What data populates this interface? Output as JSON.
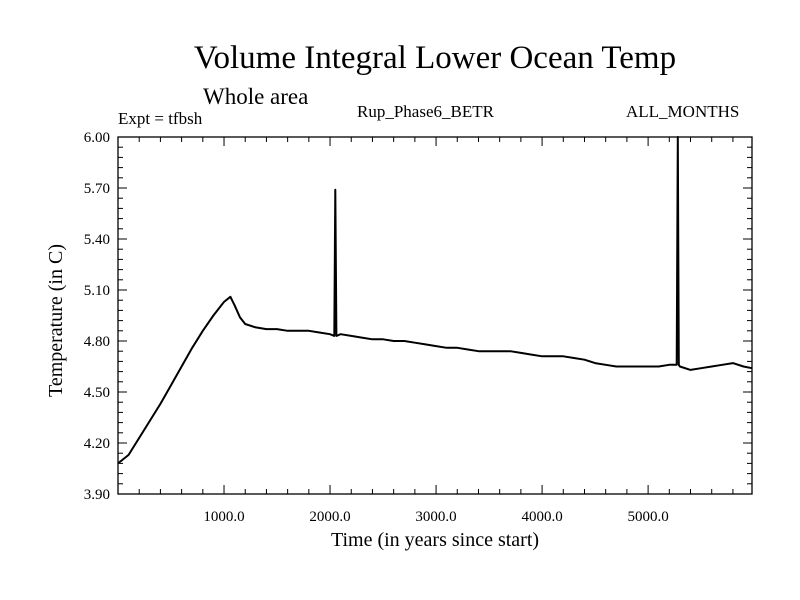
{
  "chart_data": {
    "type": "line",
    "title": "Volume Integral Lower Ocean Temp",
    "subtitle": "Whole area",
    "annotations": {
      "experiment": "Expt = tfbsh",
      "run": "Rup_Phase6_BETR",
      "period": "ALL_MONTHS"
    },
    "xlabel": "Time (in years since start)",
    "ylabel": "Temperature (in C)",
    "xlim": [
      0,
      5980
    ],
    "ylim": [
      3.9,
      6.0
    ],
    "x_ticks": [
      1000,
      2000,
      3000,
      4000,
      5000
    ],
    "x_tick_labels": [
      "1000.0",
      "2000.0",
      "3000.0",
      "4000.0",
      "5000.0"
    ],
    "y_ticks": [
      3.9,
      4.2,
      4.5,
      4.8,
      5.1,
      5.4,
      5.7,
      6.0
    ],
    "y_tick_labels": [
      "3.90",
      "4.20",
      "4.50",
      "4.80",
      "5.10",
      "5.40",
      "5.70",
      "6.00"
    ],
    "grid": false,
    "series": [
      {
        "name": "Volume Integral Lower Ocean Temp",
        "x": [
          0,
          100,
          200,
          300,
          400,
          500,
          600,
          700,
          800,
          900,
          1000,
          1060,
          1100,
          1150,
          1200,
          1300,
          1400,
          1500,
          1600,
          1700,
          1800,
          1900,
          2000,
          2040,
          2050,
          2060,
          2100,
          2200,
          2300,
          2400,
          2500,
          2600,
          2700,
          2800,
          2900,
          3000,
          3100,
          3200,
          3300,
          3400,
          3500,
          3600,
          3700,
          3800,
          3900,
          4000,
          4100,
          4200,
          4300,
          4400,
          4500,
          4600,
          4700,
          4800,
          4900,
          5000,
          5100,
          5200,
          5250,
          5270,
          5280,
          5290,
          5300,
          5400,
          5500,
          5600,
          5700,
          5800,
          5900,
          5980
        ],
        "y": [
          4.08,
          4.13,
          4.23,
          4.33,
          4.43,
          4.54,
          4.65,
          4.76,
          4.86,
          4.95,
          5.03,
          5.06,
          5.01,
          4.94,
          4.9,
          4.88,
          4.87,
          4.87,
          4.86,
          4.86,
          4.86,
          4.85,
          4.84,
          4.83,
          5.69,
          4.83,
          4.84,
          4.83,
          4.82,
          4.81,
          4.81,
          4.8,
          4.8,
          4.79,
          4.78,
          4.77,
          4.76,
          4.76,
          4.75,
          4.74,
          4.74,
          4.74,
          4.74,
          4.73,
          4.72,
          4.71,
          4.71,
          4.71,
          4.7,
          4.69,
          4.67,
          4.66,
          4.65,
          4.65,
          4.65,
          4.65,
          4.65,
          4.66,
          4.66,
          4.66,
          6.0,
          4.66,
          4.65,
          4.63,
          4.64,
          4.65,
          4.66,
          4.67,
          4.65,
          4.64
        ]
      }
    ]
  }
}
